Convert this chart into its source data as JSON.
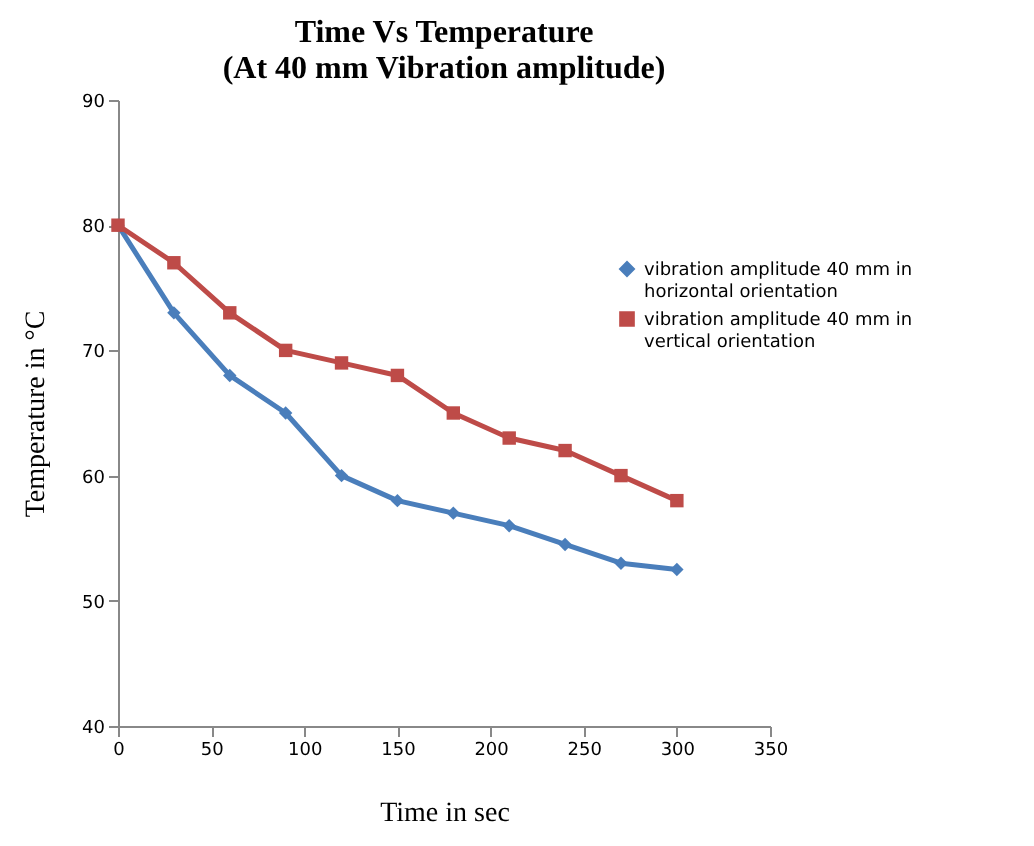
{
  "chart_data": {
    "type": "line",
    "title": "Time Vs Temperature\n(At 40 mm Vibration amplitude)",
    "xlabel": "Time in sec",
    "ylabel": "Temperature in °C",
    "x": [
      0,
      30,
      60,
      90,
      120,
      150,
      180,
      210,
      240,
      270,
      300
    ],
    "series": [
      {
        "name": "vibration amplitude 40 mm in horizontal orientation",
        "color": "#4a7ebb",
        "marker": "diamond",
        "values": [
          80,
          73,
          68,
          65,
          60,
          58,
          57,
          56,
          54.5,
          53,
          52.5
        ]
      },
      {
        "name": "vibration amplitude 40 mm in vertical orientation",
        "color": "#be4b48",
        "marker": "square",
        "values": [
          80,
          77,
          73,
          70,
          69,
          68,
          65,
          63,
          62,
          60,
          58
        ]
      }
    ],
    "xlim": [
      0,
      350
    ],
    "xticks": [
      0,
      50,
      100,
      150,
      200,
      250,
      300,
      350
    ],
    "ylim": [
      40,
      90
    ],
    "yticks": [
      40,
      50,
      60,
      70,
      80,
      90
    ],
    "grid": false,
    "legend": "right",
    "line_style": "solid"
  }
}
